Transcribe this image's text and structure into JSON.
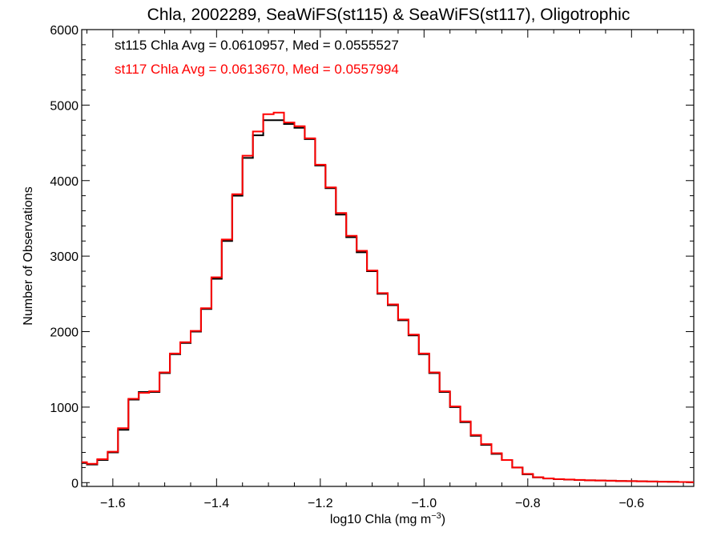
{
  "chart_data": {
    "type": "line",
    "title": "Chla, 2002289, SeaWiFS(st115) & SeaWiFS(st117), Oligotrophic",
    "xlabel_main": "log10 Chla (mg m",
    "xlabel_sup": "−3",
    "xlabel_close": ")",
    "ylabel": "Number of Observations",
    "xlim": [
      -1.66,
      -0.48
    ],
    "ylim": [
      -50,
      6000
    ],
    "xticks": [
      -1.6,
      -1.4,
      -1.2,
      -1.0,
      -0.8,
      -0.6
    ],
    "xtick_labels": [
      "−1.6",
      "−1.4",
      "−1.2",
      "−1.0",
      "−0.8",
      "−0.6"
    ],
    "yticks": [
      0,
      1000,
      2000,
      3000,
      4000,
      5000,
      6000
    ],
    "ytick_labels": [
      "0",
      "1000",
      "2000",
      "3000",
      "4000",
      "5000",
      "6000"
    ],
    "grid": false,
    "annotations": [
      {
        "text": "st115 Chla Avg = 0.0610957, Med = 0.0555527",
        "color": "#000000"
      },
      {
        "text": "st117 Chla Avg = 0.0613670, Med = 0.0557994",
        "color": "#ff0000"
      }
    ],
    "x": [
      -1.66,
      -1.64,
      -1.62,
      -1.6,
      -1.58,
      -1.56,
      -1.54,
      -1.52,
      -1.5,
      -1.48,
      -1.46,
      -1.44,
      -1.42,
      -1.4,
      -1.38,
      -1.36,
      -1.34,
      -1.32,
      -1.3,
      -1.28,
      -1.26,
      -1.24,
      -1.22,
      -1.2,
      -1.18,
      -1.16,
      -1.14,
      -1.12,
      -1.1,
      -1.08,
      -1.06,
      -1.04,
      -1.02,
      -1.0,
      -0.98,
      -0.96,
      -0.94,
      -0.92,
      -0.9,
      -0.88,
      -0.86,
      -0.84,
      -0.82,
      -0.8,
      -0.78,
      -0.76,
      -0.74,
      -0.72,
      -0.7,
      -0.68,
      -0.66,
      -0.64,
      -0.62,
      -0.6,
      -0.58,
      -0.56,
      -0.54,
      -0.52,
      -0.5,
      -0.48
    ],
    "series": [
      {
        "color": "#000000",
        "values": [
          260,
          240,
          300,
          400,
          700,
          1100,
          1200,
          1200,
          1450,
          1700,
          1850,
          2000,
          2300,
          2700,
          3200,
          3800,
          4300,
          4600,
          4800,
          4800,
          4750,
          4700,
          4550,
          4200,
          3900,
          3550,
          3250,
          3050,
          2800,
          2500,
          2350,
          2150,
          1950,
          1700,
          1450,
          1200,
          1000,
          800,
          620,
          500,
          380,
          300,
          200,
          110,
          70,
          55,
          45,
          40,
          35,
          30,
          28,
          25,
          22,
          20,
          18,
          15,
          12,
          10,
          8,
          6
        ]
      },
      {
        "color": "#ff0000",
        "values": [
          270,
          250,
          310,
          410,
          720,
          1110,
          1190,
          1210,
          1460,
          1710,
          1860,
          2010,
          2310,
          2720,
          3220,
          3820,
          4330,
          4650,
          4880,
          4900,
          4770,
          4720,
          4560,
          4210,
          3910,
          3570,
          3270,
          3070,
          2810,
          2510,
          2360,
          2160,
          1960,
          1710,
          1460,
          1210,
          1010,
          810,
          630,
          510,
          390,
          300,
          200,
          115,
          72,
          56,
          46,
          41,
          36,
          31,
          28,
          25,
          22,
          20,
          18,
          15,
          12,
          10,
          8,
          6
        ]
      }
    ]
  }
}
